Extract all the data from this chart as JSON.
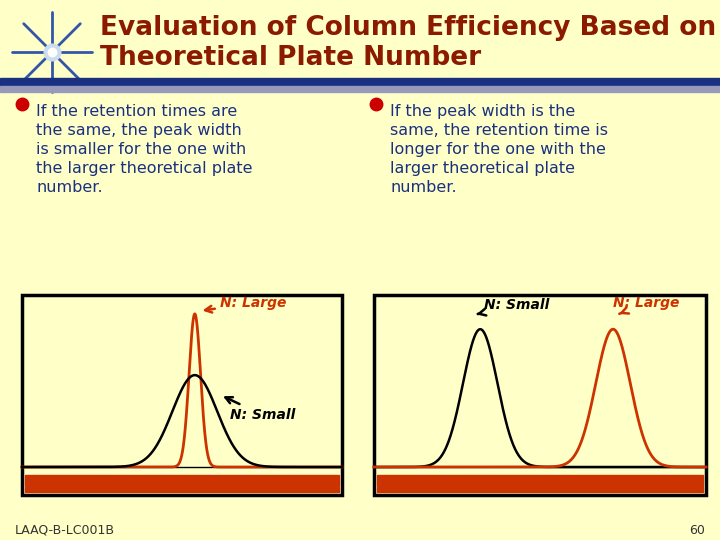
{
  "bg_color": "#FFFFC8",
  "title_line1": "Evaluation of Column Efficiency Based on",
  "title_line2": "Theoretical Plate Number",
  "title_color": "#8B1A00",
  "title_fontsize": 19,
  "header_bar_color1": "#1A3080",
  "header_bar_color2": "#9999BB",
  "bullet_color": "#CC0000",
  "text_color": "#1A3080",
  "text_fontsize": 11.5,
  "bullet1_lines": [
    "If the retention times are",
    "the same, the peak width",
    "is smaller for the one with",
    "the larger theoretical plate",
    "number."
  ],
  "bullet2_lines": [
    "If the peak width is the",
    "same, the retention time is",
    "longer for the one with the",
    "larger theoretical plate",
    "number."
  ],
  "footer_text": "LAAQ-B-LC001B",
  "footer_page": "60",
  "plot_bg": "#FFFFC8",
  "peak_large_color": "#CC3300",
  "peak_small_color": "#000000",
  "box_border_color": "#000000",
  "bottom_bar_color1": "#CC3300",
  "bottom_bar_color2": "#CC6633"
}
